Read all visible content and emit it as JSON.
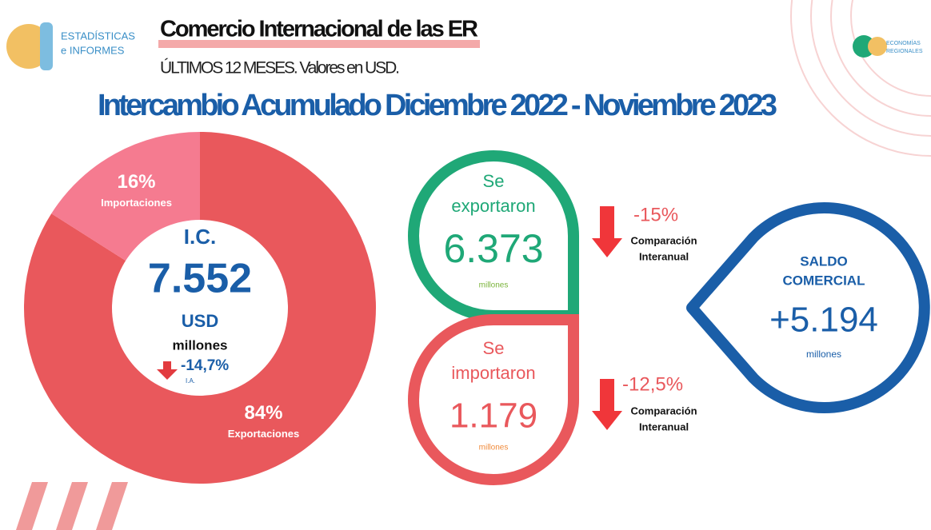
{
  "header": {
    "logo_text_1": "ESTADÍSTICAS",
    "logo_text_2": "e INFORMES",
    "title": "Comercio Internacional de las ER",
    "subtitle": "ÚLTIMOS 12 MESES. Valores en USD.",
    "right_logo_1": "ECONOMÍAS",
    "right_logo_2": "REGIONALES"
  },
  "main_title": "Intercambio Acumulado Diciembre 2022 - Noviembre 2023",
  "chart_data": {
    "type": "donut",
    "categories": [
      "Exportaciones",
      "Importaciones"
    ],
    "values": [
      84,
      16
    ],
    "value_labels": [
      "84%",
      "16%"
    ],
    "colors": [
      "#e9585c",
      "#f57b90"
    ]
  },
  "center": {
    "label": "I.C.",
    "value": "7.552",
    "unit": "USD",
    "scale": "millones",
    "change": "-14,7%",
    "change_note": "I.A."
  },
  "exports": {
    "label_1": "Se",
    "label_2": "exportaron",
    "value": "6.373",
    "scale": "millones",
    "change": "-15%",
    "change_note_1": "Comparación",
    "change_note_2": "Interanual"
  },
  "imports": {
    "label_1": "Se",
    "label_2": "importaron",
    "value": "1.179",
    "scale": "millones",
    "change": "-12,5%",
    "change_note_1": "Comparación",
    "change_note_2": "Interanual"
  },
  "balance": {
    "label_1": "SALDO",
    "label_2": "COMERCIAL",
    "value": "+5.194",
    "scale": "millones"
  }
}
